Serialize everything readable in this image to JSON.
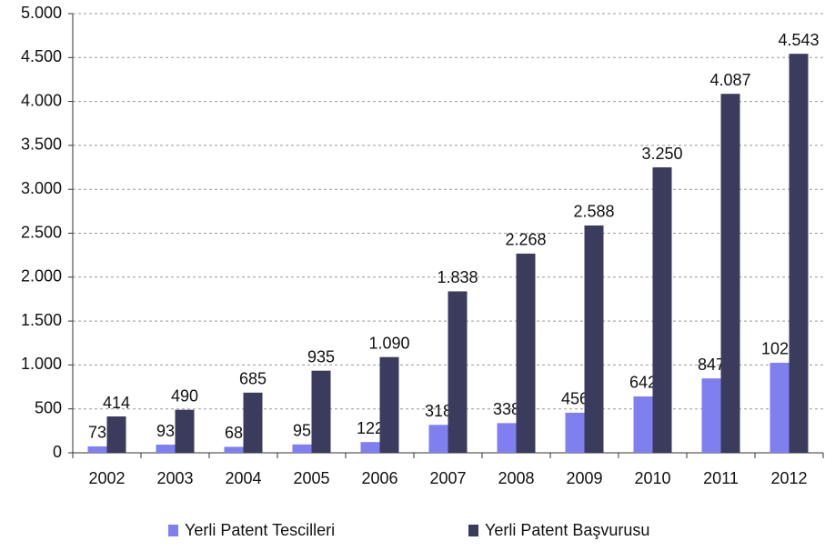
{
  "chart_data": {
    "type": "bar",
    "categories": [
      "2002",
      "2003",
      "2004",
      "2005",
      "2006",
      "2007",
      "2008",
      "2009",
      "2010",
      "2011",
      "2012"
    ],
    "series": [
      {
        "name": "Yerli Patent Tescilleri",
        "color": "#7f7fef",
        "values": [
          73,
          93,
          68,
          95,
          122,
          318,
          338,
          456,
          642,
          847,
          1025
        ]
      },
      {
        "name": "Yerli Patent Başvurusu",
        "color": "#3b3b5e",
        "values": [
          414,
          490,
          685,
          935,
          1090,
          1838,
          2268,
          2588,
          3250,
          4087,
          4543
        ],
        "value_labels": [
          "414",
          "490",
          "685",
          "935",
          "1.090",
          "1.838",
          "2.268",
          "2.588",
          "3.250",
          "4.087",
          "4.543"
        ]
      }
    ],
    "ylim": [
      0,
      5000
    ],
    "yticks": [
      0,
      500,
      {
        "value": 1000,
        "label": "1.000"
      },
      {
        "value": 1500,
        "label": "1.500"
      },
      {
        "value": 2000,
        "label": "2.000"
      },
      {
        "value": 2500,
        "label": "2.500"
      },
      {
        "value": 3000,
        "label": "3.000"
      },
      {
        "value": 3500,
        "label": "3.500"
      },
      {
        "value": 4000,
        "label": "4.000"
      },
      {
        "value": 4500,
        "label": "4.500"
      },
      {
        "value": 5000,
        "label": "5.000"
      }
    ],
    "grid": true,
    "legend": "bottom"
  }
}
